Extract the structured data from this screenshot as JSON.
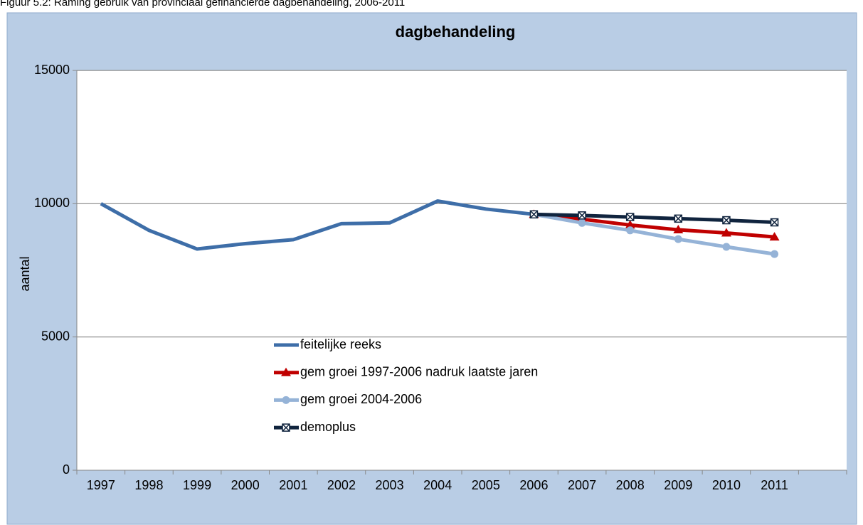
{
  "caption": "Figuur 5.2: Raming gebruik van provinciaal gefinancierde dagbehandeling, 2006-2011",
  "chart_data": {
    "type": "line",
    "title": "dagbehandeling",
    "y_label": "aantal",
    "categories": [
      "1997",
      "1998",
      "1999",
      "2000",
      "2001",
      "2002",
      "2003",
      "2004",
      "2005",
      "2006",
      "2007",
      "2008",
      "2009",
      "2010",
      "2011",
      null
    ],
    "series": [
      {
        "name": "feitelijke reeks",
        "color": "#3e6ea8",
        "marker": "none",
        "values": [
          10000,
          9000,
          8300,
          8500,
          8650,
          9250,
          9280,
          10100,
          9800,
          9600,
          null,
          null,
          null,
          null,
          null,
          null
        ]
      },
      {
        "name": "gem groei 1997-2006 nadruk laatste jaren",
        "color": "#c00000",
        "marker": "triangle",
        "values": [
          null,
          null,
          null,
          null,
          null,
          null,
          null,
          null,
          null,
          9600,
          9420,
          9200,
          9020,
          8900,
          8750,
          null
        ]
      },
      {
        "name": "gem groei 2004-2006",
        "color": "#95b3d7",
        "marker": "circle",
        "values": [
          null,
          null,
          null,
          null,
          null,
          null,
          null,
          null,
          null,
          9600,
          9280,
          9000,
          8670,
          8380,
          8110,
          null
        ]
      },
      {
        "name": "demoplus",
        "color": "#10243e",
        "marker": "xsquare",
        "values": [
          null,
          null,
          null,
          null,
          null,
          null,
          null,
          null,
          null,
          9600,
          9560,
          9500,
          9440,
          9380,
          9300,
          null
        ]
      }
    ],
    "ylim": [
      0,
      15000
    ],
    "yticks": [
      0,
      5000,
      10000,
      15000
    ],
    "grid": true
  }
}
